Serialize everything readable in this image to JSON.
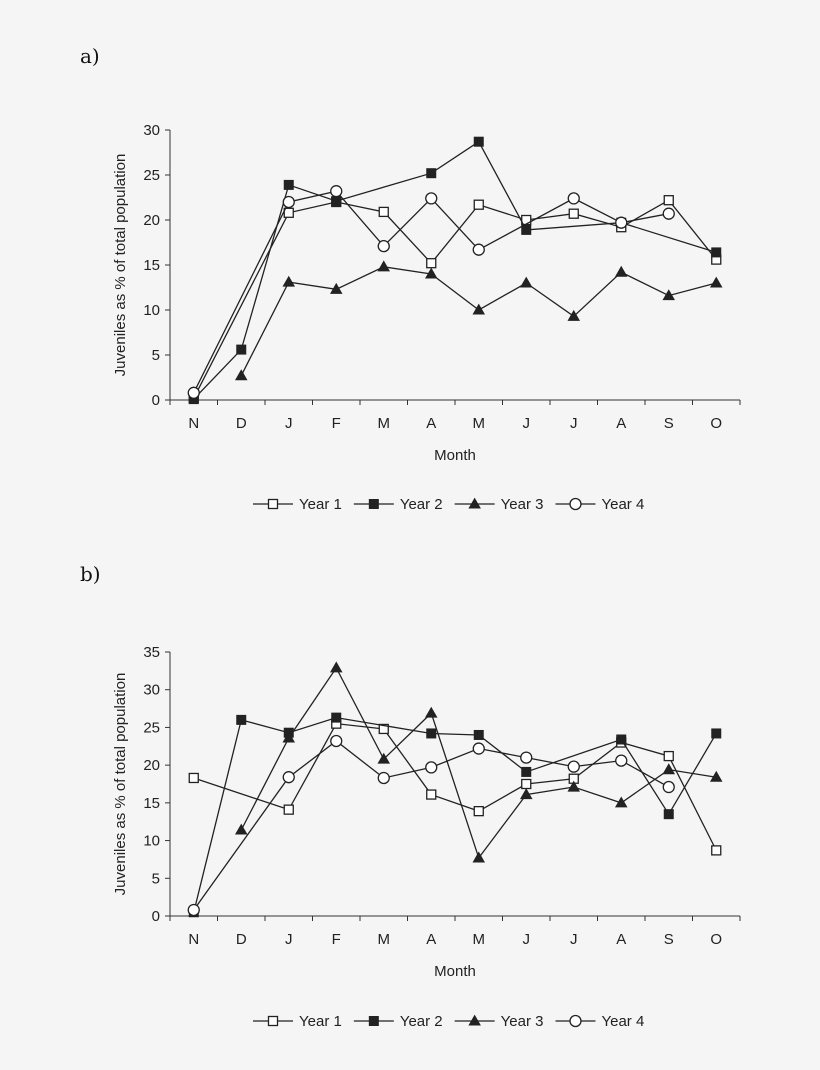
{
  "panels": [
    {
      "label": "a)"
    },
    {
      "label": "b)"
    }
  ],
  "chart_data": [
    {
      "type": "line",
      "categories": [
        "N",
        "D",
        "J",
        "F",
        "M",
        "A",
        "M",
        "J",
        "J",
        "A",
        "S",
        "O"
      ],
      "xlabel": "Month",
      "ylabel": "Juveniles as % of total population",
      "ylim": [
        0,
        30
      ],
      "yticks": [
        0,
        5,
        10,
        15,
        20,
        25,
        30
      ],
      "legend_position": "bottom",
      "series": [
        {
          "name": "Year 1",
          "marker": "square-open",
          "values": [
            0.2,
            null,
            20.8,
            22.0,
            20.9,
            15.2,
            21.7,
            20.0,
            20.7,
            19.2,
            22.2,
            15.6
          ]
        },
        {
          "name": "Year 2",
          "marker": "square-filled",
          "values": [
            0.1,
            5.6,
            23.9,
            22.1,
            null,
            25.2,
            28.7,
            18.9,
            null,
            19.7,
            null,
            16.4
          ]
        },
        {
          "name": "Year 3",
          "marker": "triangle-filled",
          "values": [
            null,
            2.7,
            13.1,
            12.3,
            14.8,
            14.0,
            10.0,
            13.0,
            9.3,
            14.2,
            11.6,
            13.0
          ]
        },
        {
          "name": "Year 4",
          "marker": "circle-open",
          "values": [
            0.8,
            null,
            22.0,
            23.2,
            17.1,
            22.4,
            16.7,
            null,
            22.4,
            19.7,
            20.7,
            null
          ]
        }
      ]
    },
    {
      "type": "line",
      "categories": [
        "N",
        "D",
        "J",
        "F",
        "M",
        "A",
        "M",
        "J",
        "J",
        "A",
        "S",
        "O"
      ],
      "xlabel": "Month",
      "ylabel": "Juveniles as % of total population",
      "ylim": [
        0,
        35
      ],
      "yticks": [
        0,
        5,
        10,
        15,
        20,
        25,
        30,
        35
      ],
      "legend_position": "bottom",
      "series": [
        {
          "name": "Year 1",
          "marker": "square-open",
          "values": [
            18.3,
            null,
            14.1,
            25.5,
            24.8,
            16.1,
            13.9,
            17.5,
            18.2,
            23.0,
            21.2,
            8.7
          ]
        },
        {
          "name": "Year 2",
          "marker": "square-filled",
          "values": [
            0.5,
            26.0,
            24.3,
            26.3,
            null,
            24.2,
            24.0,
            19.1,
            null,
            23.4,
            13.5,
            24.2
          ]
        },
        {
          "name": "Year 3",
          "marker": "triangle-filled",
          "values": [
            null,
            11.4,
            23.6,
            32.9,
            20.8,
            26.9,
            7.7,
            16.1,
            17.1,
            15.0,
            19.4,
            18.4
          ]
        },
        {
          "name": "Year 4",
          "marker": "circle-open",
          "values": [
            0.8,
            null,
            18.4,
            23.2,
            18.3,
            19.7,
            22.2,
            21.0,
            19.8,
            20.6,
            17.1,
            null
          ]
        }
      ]
    }
  ]
}
